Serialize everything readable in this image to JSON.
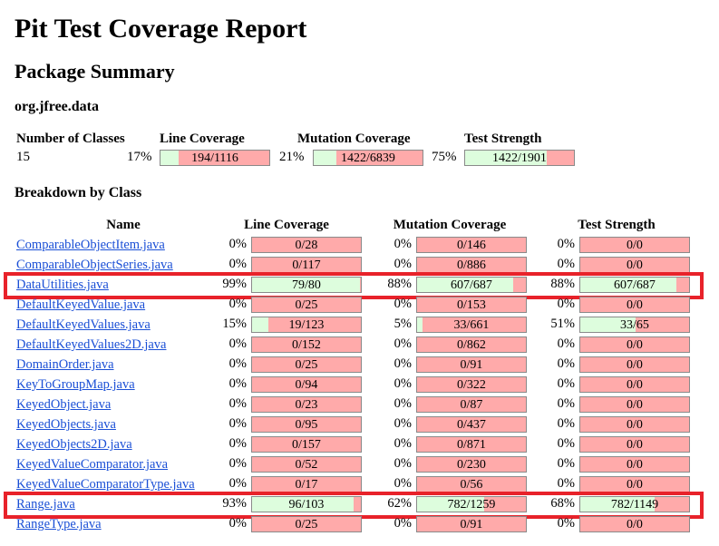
{
  "title": "Pit Test Coverage Report",
  "package_summary": {
    "heading": "Package Summary",
    "package": "org.jfree.data",
    "headers": {
      "classes": "Number of Classes",
      "line": "Line Coverage",
      "mutation": "Mutation Coverage",
      "strength": "Test Strength"
    },
    "num_classes": "15",
    "line": {
      "pct": "17%",
      "text": "194/1116",
      "ratio": 0.17
    },
    "mutation": {
      "pct": "21%",
      "text": "1422/6839",
      "ratio": 0.21
    },
    "strength": {
      "pct": "75%",
      "text": "1422/1901",
      "ratio": 0.75
    }
  },
  "breakdown": {
    "heading": "Breakdown by Class",
    "headers": {
      "name": "Name",
      "line": "Line Coverage",
      "mutation": "Mutation Coverage",
      "strength": "Test Strength"
    },
    "rows": [
      {
        "name": "ComparableObjectItem.java",
        "line": [
          "0%",
          "0/28",
          0
        ],
        "mut": [
          "0%",
          "0/146",
          0
        ],
        "str": [
          "0%",
          "0/0",
          0
        ]
      },
      {
        "name": "ComparableObjectSeries.java",
        "line": [
          "0%",
          "0/117",
          0
        ],
        "mut": [
          "0%",
          "0/886",
          0
        ],
        "str": [
          "0%",
          "0/0",
          0
        ]
      },
      {
        "name": "DataUtilities.java",
        "line": [
          "99%",
          "79/80",
          0.99
        ],
        "mut": [
          "88%",
          "607/687",
          0.88
        ],
        "str": [
          "88%",
          "607/687",
          0.88
        ],
        "highlight": true
      },
      {
        "name": "DefaultKeyedValue.java",
        "line": [
          "0%",
          "0/25",
          0
        ],
        "mut": [
          "0%",
          "0/153",
          0
        ],
        "str": [
          "0%",
          "0/0",
          0
        ]
      },
      {
        "name": "DefaultKeyedValues.java",
        "line": [
          "15%",
          "19/123",
          0.15
        ],
        "mut": [
          "5%",
          "33/661",
          0.05
        ],
        "str": [
          "51%",
          "33/65",
          0.51
        ]
      },
      {
        "name": "DefaultKeyedValues2D.java",
        "line": [
          "0%",
          "0/152",
          0
        ],
        "mut": [
          "0%",
          "0/862",
          0
        ],
        "str": [
          "0%",
          "0/0",
          0
        ]
      },
      {
        "name": "DomainOrder.java",
        "line": [
          "0%",
          "0/25",
          0
        ],
        "mut": [
          "0%",
          "0/91",
          0
        ],
        "str": [
          "0%",
          "0/0",
          0
        ]
      },
      {
        "name": "KeyToGroupMap.java",
        "line": [
          "0%",
          "0/94",
          0
        ],
        "mut": [
          "0%",
          "0/322",
          0
        ],
        "str": [
          "0%",
          "0/0",
          0
        ]
      },
      {
        "name": "KeyedObject.java",
        "line": [
          "0%",
          "0/23",
          0
        ],
        "mut": [
          "0%",
          "0/87",
          0
        ],
        "str": [
          "0%",
          "0/0",
          0
        ]
      },
      {
        "name": "KeyedObjects.java",
        "line": [
          "0%",
          "0/95",
          0
        ],
        "mut": [
          "0%",
          "0/437",
          0
        ],
        "str": [
          "0%",
          "0/0",
          0
        ]
      },
      {
        "name": "KeyedObjects2D.java",
        "line": [
          "0%",
          "0/157",
          0
        ],
        "mut": [
          "0%",
          "0/871",
          0
        ],
        "str": [
          "0%",
          "0/0",
          0
        ]
      },
      {
        "name": "KeyedValueComparator.java",
        "line": [
          "0%",
          "0/52",
          0
        ],
        "mut": [
          "0%",
          "0/230",
          0
        ],
        "str": [
          "0%",
          "0/0",
          0
        ]
      },
      {
        "name": "KeyedValueComparatorType.java",
        "line": [
          "0%",
          "0/17",
          0
        ],
        "mut": [
          "0%",
          "0/56",
          0
        ],
        "str": [
          "0%",
          "0/0",
          0
        ]
      },
      {
        "name": "Range.java",
        "line": [
          "93%",
          "96/103",
          0.93
        ],
        "mut": [
          "62%",
          "782/1259",
          0.62
        ],
        "str": [
          "68%",
          "782/1149",
          0.68
        ],
        "highlight": true
      },
      {
        "name": "RangeType.java",
        "line": [
          "0%",
          "0/25",
          0
        ],
        "mut": [
          "0%",
          "0/91",
          0
        ],
        "str": [
          "0%",
          "0/0",
          0
        ]
      }
    ]
  },
  "colors": {
    "covered": "#ddfddd",
    "uncovered": "#ffaaaa",
    "link": "#1a4fd6",
    "highlight_box": "#e8222a"
  }
}
